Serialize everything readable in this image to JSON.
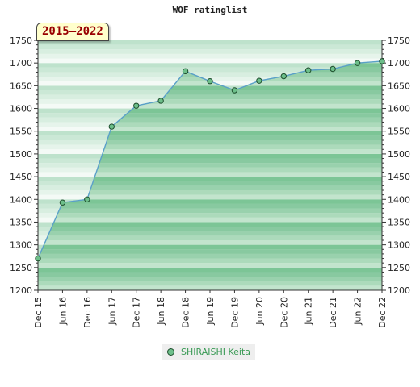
{
  "title": "WOF ratinglist",
  "period": "2015–2022",
  "chart_data": {
    "type": "area",
    "title": "WOF ratinglist",
    "x": [
      "Dec 15",
      "Jun 16",
      "Dec 16",
      "Jun 17",
      "Dec 17",
      "Jun 18",
      "Dec 18",
      "Jun 19",
      "Dec 19",
      "Jun 20",
      "Dec 20",
      "Jun 21",
      "Dec 21",
      "Jun 22",
      "Dec 22"
    ],
    "series": [
      {
        "name": "SHIRAISHI Keita",
        "values": [
          1270,
          1393,
          1400,
          1560,
          1606,
          1617,
          1682,
          1660,
          1640,
          1661,
          1671,
          1684,
          1687,
          1700,
          1704
        ]
      }
    ],
    "ylim": [
      1200,
      1750
    ],
    "yticks": [
      1200,
      1250,
      1300,
      1350,
      1400,
      1450,
      1500,
      1550,
      1600,
      1650,
      1700,
      1750
    ],
    "legend_position": "bottom",
    "grid": true
  },
  "colors": {
    "fill": "#7cc596",
    "line": "#5aa0c8",
    "marker_fill": "#6dbf8a",
    "marker_stroke": "#1d4d2c"
  }
}
